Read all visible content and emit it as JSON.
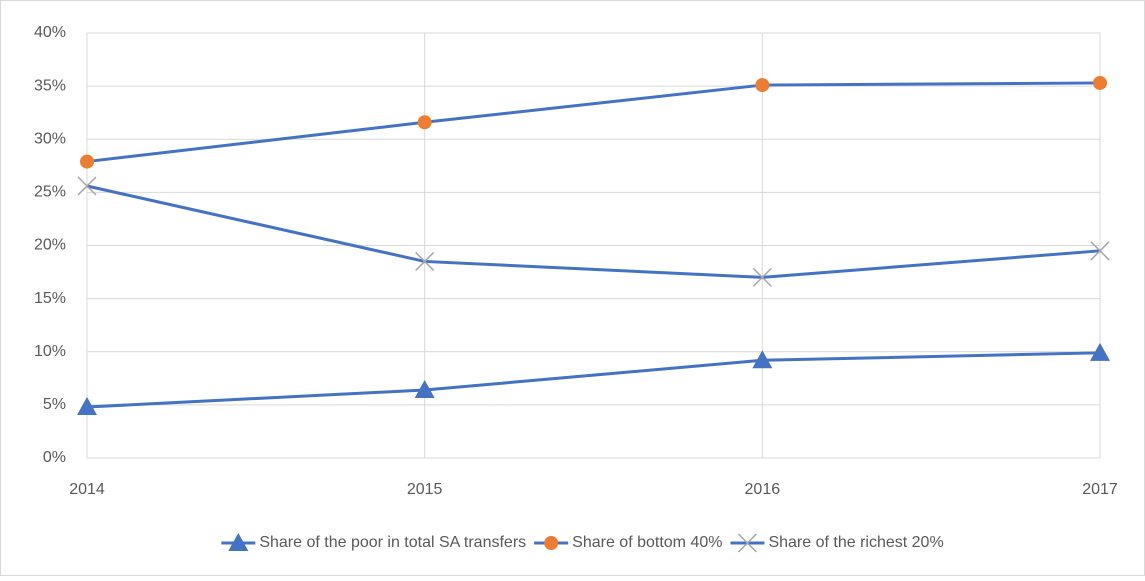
{
  "chart_data": {
    "type": "line",
    "categories": [
      "2014",
      "2015",
      "2016",
      "2017"
    ],
    "series": [
      {
        "name": "Share of the poor in total SA transfers",
        "color": "#4472c4",
        "marker": "triangle",
        "marker_color": "#4472c4",
        "values": [
          4.8,
          6.4,
          9.2,
          9.9
        ]
      },
      {
        "name": "Share of bottom 40%",
        "color": "#4472c4",
        "marker": "circle",
        "marker_color": "#ed7d31",
        "values": [
          27.9,
          31.6,
          35.1,
          35.3
        ]
      },
      {
        "name": "Share of the richest 20%",
        "color": "#4472c4",
        "marker": "x",
        "marker_color": "#a5a5a5",
        "values": [
          25.6,
          18.5,
          17.0,
          19.5
        ]
      }
    ],
    "ylim": [
      0,
      40
    ],
    "yticks": [
      {
        "value": 0,
        "label": "0%"
      },
      {
        "value": 5,
        "label": "5%"
      },
      {
        "value": 10,
        "label": "10%"
      },
      {
        "value": 15,
        "label": "15%"
      },
      {
        "value": 20,
        "label": "20%"
      },
      {
        "value": 25,
        "label": "25%"
      },
      {
        "value": 30,
        "label": "30%"
      },
      {
        "value": 35,
        "label": "35%"
      },
      {
        "value": 40,
        "label": "40%"
      }
    ],
    "grid": true,
    "legend": "bottom"
  }
}
